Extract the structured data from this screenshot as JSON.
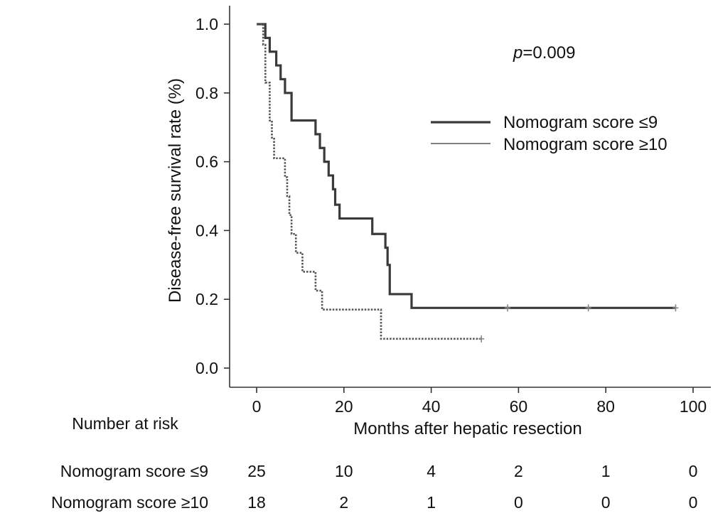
{
  "chart_data": {
    "type": "line",
    "subtype": "kaplan-meier",
    "title": "",
    "xlabel": "Months after hepatic resection",
    "ylabel": "Disease-free survival rate (%)",
    "xlim": [
      0,
      100
    ],
    "ylim": [
      0,
      1
    ],
    "x_ticks": [
      "0",
      "20",
      "40",
      "60",
      "80",
      "100"
    ],
    "y_ticks": [
      "0.0",
      "0.2",
      "0.4",
      "0.6",
      "0.8",
      "1.0"
    ],
    "annotation": {
      "prefix": "p",
      "text": "=0.009"
    },
    "legend_position": "top-right",
    "series": [
      {
        "name": "Nomogram score ≤9",
        "color": "#3a3a3a",
        "style": "solid",
        "x": [
          0,
          1.5,
          2.0,
          2.5,
          3.0,
          3.5,
          4.5,
          5.5,
          6.5,
          8.0,
          13.5,
          14.5,
          15.5,
          16.5,
          17.5,
          18.0,
          19.0,
          26.5,
          29.5,
          30.0,
          30.5,
          35.5,
          96.0
        ],
        "y": [
          1.0,
          1.0,
          0.96,
          0.96,
          0.92,
          0.92,
          0.88,
          0.84,
          0.8,
          0.72,
          0.68,
          0.64,
          0.6,
          0.56,
          0.52,
          0.475,
          0.435,
          0.39,
          0.35,
          0.3,
          0.215,
          0.175,
          0.175
        ],
        "censored": [
          {
            "x": 57.5,
            "y": 0.175
          },
          {
            "x": 76.0,
            "y": 0.175
          },
          {
            "x": 96.0,
            "y": 0.175
          }
        ]
      },
      {
        "name": "Nomogram score ≥10",
        "color": "#555555",
        "style": "dotted",
        "x": [
          0,
          1.0,
          1.5,
          2.0,
          2.5,
          3.0,
          3.5,
          4.0,
          6.5,
          7.0,
          7.5,
          8.0,
          8.5,
          9.0,
          9.5,
          10.5,
          11.5,
          13.5,
          14.5,
          15.0,
          28.0,
          28.5,
          51.5
        ],
        "y": [
          1.0,
          1.0,
          0.94,
          0.83,
          0.83,
          0.72,
          0.67,
          0.61,
          0.555,
          0.5,
          0.445,
          0.39,
          0.39,
          0.335,
          0.335,
          0.28,
          0.28,
          0.225,
          0.225,
          0.17,
          0.17,
          0.085,
          0.085
        ],
        "censored": [
          {
            "x": 51.5,
            "y": 0.085
          }
        ]
      }
    ],
    "risk_table": {
      "title": "Number at risk",
      "rows": [
        {
          "label": "Nomogram score ≤9",
          "values": [
            "25",
            "10",
            "4",
            "2",
            "1",
            "0"
          ]
        },
        {
          "label": "Nomogram score ≥10",
          "values": [
            "18",
            "2",
            "1",
            "0",
            "0",
            "0"
          ]
        }
      ]
    }
  }
}
